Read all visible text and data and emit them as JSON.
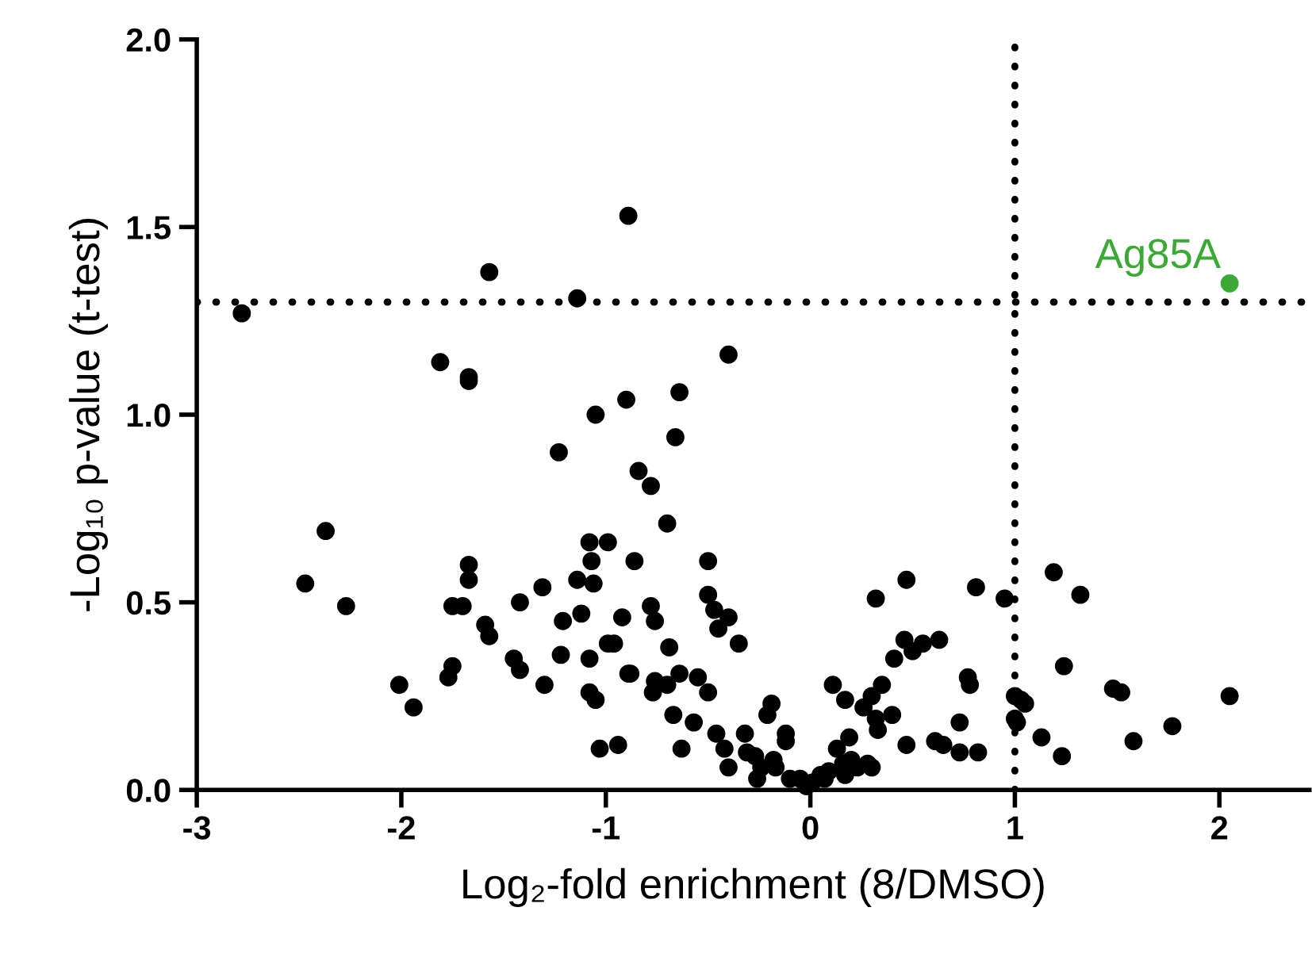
{
  "chart_data": {
    "type": "scatter",
    "xlabel": "Log₂-fold enrichment (8/DMSO)",
    "ylabel": "-Log₁₀ p-value (t-test)",
    "xlim": [
      -3,
      2.44
    ],
    "ylim": [
      0,
      2.0
    ],
    "xticks": [
      {
        "value": -3,
        "label": "-3"
      },
      {
        "value": -2,
        "label": "-2"
      },
      {
        "value": -1,
        "label": "-1"
      },
      0,
      1,
      2
    ],
    "yticks": [
      {
        "value": 0,
        "label": "0.0"
      },
      {
        "value": 0.5,
        "label": "0.5"
      },
      {
        "value": 1.0,
        "label": "1.0"
      },
      {
        "value": 1.5,
        "label": "1.5"
      },
      {
        "value": 2.0,
        "label": "2.0"
      }
    ],
    "grid": false,
    "legend": false,
    "marker": "circle",
    "ref_lines": [
      {
        "axis": "y",
        "value": 1.3,
        "color": "#000000",
        "line_style": "dotted"
      },
      {
        "axis": "x",
        "value": 1,
        "color": "#000000",
        "line_style": "dotted"
      }
    ],
    "series": [
      {
        "color": "#000000",
        "x": [
          -0.89,
          -1.57,
          -1.14,
          -2.78,
          -1.81,
          -1.67,
          -1.67,
          -0.4,
          -1.05,
          -0.9,
          -0.64,
          -0.66,
          -1.23,
          -0.84,
          -0.78,
          -0.7,
          -2.37,
          -1.08,
          -0.99,
          -1.07,
          -0.86,
          -0.5,
          -1.67,
          -1.67,
          -1.14,
          -1.06,
          -2.47,
          -1.31,
          -0.5,
          -2.27,
          -1.75,
          -1.7,
          -1.42,
          -1.59,
          -1.57,
          -1.21,
          -1.12,
          -0.92,
          -0.78,
          -0.76,
          -0.47,
          -0.4,
          -0.45,
          -0.69,
          -0.99,
          -0.96,
          -1.22,
          -1.08,
          -1.45,
          -1.42,
          -1.75,
          -1.77,
          -2.01,
          -1.94,
          -1.3,
          -0.89,
          -0.88,
          -0.76,
          -0.7,
          -0.77,
          -0.64,
          -0.55,
          -0.5,
          -1.08,
          -1.05,
          -0.67,
          -0.57,
          -0.46,
          -0.42,
          -1.03,
          -0.94,
          -0.63,
          -0.4,
          -0.35,
          -0.32,
          -0.26,
          -0.27,
          -0.21,
          -0.19,
          -0.18,
          -0.17,
          -0.12,
          -0.12,
          -0.1,
          -0.05,
          -0.02,
          0.01,
          0.05,
          0.09,
          0.11,
          0.13,
          0.17,
          0.17,
          0.19,
          0.2,
          0.26,
          0.28,
          0.3,
          0.32,
          0.33,
          0.35,
          0.4,
          0.32,
          0.41,
          0.46,
          0.5,
          0.55,
          0.47,
          0.47,
          0.61,
          0.65,
          0.63,
          0.73,
          0.73,
          0.77,
          0.78,
          0.82,
          0.81,
          0.95,
          1.0,
          1.03,
          1.05,
          1.0,
          1.01,
          1.13,
          1.23,
          1.24,
          1.19,
          1.32,
          1.48,
          1.52,
          1.58,
          1.77,
          2.05,
          0.07,
          0.23,
          0.3,
          0.16,
          -0.24,
          -0.31
        ],
        "values": [
          1.53,
          1.38,
          1.31,
          1.27,
          1.14,
          1.1,
          1.09,
          1.16,
          1.0,
          1.04,
          1.06,
          0.94,
          0.9,
          0.85,
          0.81,
          0.71,
          0.69,
          0.66,
          0.66,
          0.61,
          0.61,
          0.61,
          0.6,
          0.56,
          0.56,
          0.55,
          0.55,
          0.54,
          0.52,
          0.49,
          0.49,
          0.49,
          0.5,
          0.44,
          0.41,
          0.45,
          0.47,
          0.46,
          0.49,
          0.45,
          0.48,
          0.46,
          0.43,
          0.38,
          0.39,
          0.39,
          0.36,
          0.35,
          0.35,
          0.32,
          0.33,
          0.3,
          0.28,
          0.22,
          0.28,
          0.31,
          0.31,
          0.29,
          0.28,
          0.26,
          0.31,
          0.3,
          0.26,
          0.26,
          0.24,
          0.2,
          0.18,
          0.15,
          0.11,
          0.11,
          0.12,
          0.11,
          0.06,
          0.39,
          0.15,
          0.03,
          0.09,
          0.2,
          0.23,
          0.08,
          0.06,
          0.15,
          0.13,
          0.03,
          0.03,
          0.01,
          0.02,
          0.04,
          0.05,
          0.28,
          0.11,
          0.24,
          0.04,
          0.14,
          0.08,
          0.22,
          0.07,
          0.25,
          0.19,
          0.16,
          0.28,
          0.2,
          0.51,
          0.35,
          0.4,
          0.37,
          0.39,
          0.56,
          0.12,
          0.13,
          0.12,
          0.4,
          0.18,
          0.1,
          0.3,
          0.28,
          0.1,
          0.54,
          0.51,
          0.25,
          0.24,
          0.23,
          0.19,
          0.18,
          0.14,
          0.09,
          0.33,
          0.58,
          0.52,
          0.27,
          0.26,
          0.13,
          0.17,
          0.25,
          0.03,
          0.06,
          0.06,
          0.07,
          0.06,
          0.1
        ]
      },
      {
        "name": "Ag85A",
        "color": "#3aaa35",
        "x": [
          2.05
        ],
        "values": [
          1.35
        ]
      }
    ]
  }
}
